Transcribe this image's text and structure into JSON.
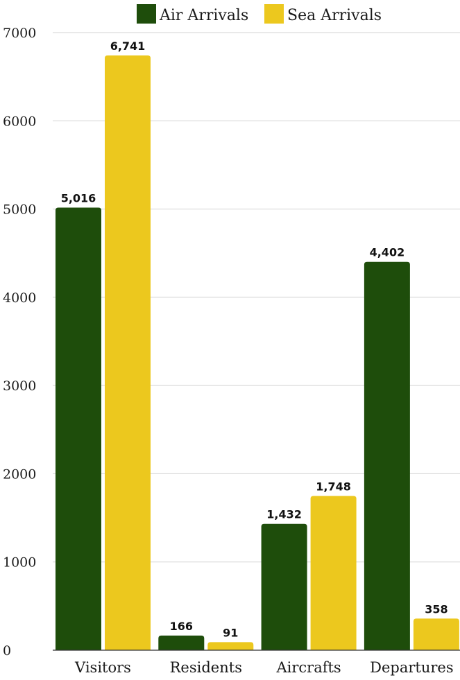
{
  "chart_data": {
    "type": "bar",
    "categories": [
      "Visitors",
      "Residents",
      "Aircrafts",
      "Departures"
    ],
    "series": [
      {
        "name": "Air Arrivals",
        "values": [
          5016,
          166,
          1432,
          4402
        ],
        "labels": [
          "5,016",
          "166",
          "1,432",
          "4,402"
        ],
        "color": "#1e4d0b"
      },
      {
        "name": "Sea Arrivals",
        "values": [
          6741,
          91,
          1748,
          358
        ],
        "labels": [
          "6,741",
          "91",
          "1,748",
          "358"
        ],
        "color": "#ecc81e"
      }
    ],
    "ylim": [
      0,
      7000
    ],
    "yticks": [
      0,
      1000,
      2000,
      3000,
      4000,
      5000,
      6000,
      7000
    ],
    "ytick_labels": [
      "0",
      "1000",
      "2000",
      "3000",
      "4000",
      "5000",
      "6000",
      "7000"
    ],
    "grid": true,
    "legend_position": "top-center"
  }
}
